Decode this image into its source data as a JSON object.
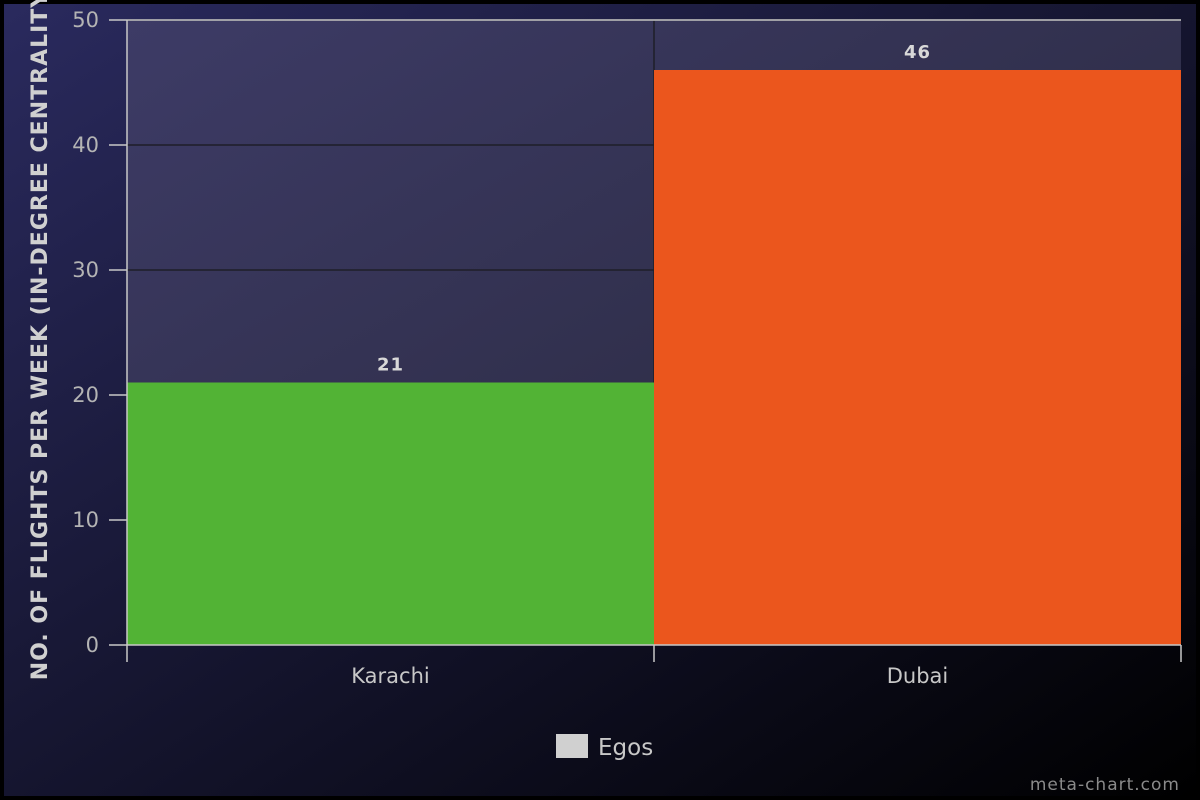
{
  "chart_data": {
    "type": "bar",
    "title": "",
    "xlabel": "",
    "ylabel": "NO. OF FLIGHTS PER WEEK (IN-DEGREE CENTRALITY)",
    "categories": [
      "Karachi",
      "Dubai"
    ],
    "series": [
      {
        "name": "Egos",
        "values": [
          21,
          46
        ],
        "colors": [
          "#52b335",
          "#eb561d"
        ]
      }
    ],
    "ylim": [
      0,
      50
    ],
    "yticks": [
      0,
      10,
      20,
      30,
      40,
      50
    ],
    "data_labels": [
      "21",
      "46"
    ],
    "grid": true,
    "legend": {
      "position": "bottom-center",
      "entries": [
        "Egos"
      ],
      "swatch_color": "#d0d0d0"
    },
    "credit": "meta-chart.com"
  },
  "colors": {
    "background_from": "#2a2a5e",
    "background_to": "#000000",
    "plot_from": "#3d3b66",
    "plot_to": "#262636",
    "grid": "#1e1e28",
    "axis": "#c8c8c8"
  }
}
